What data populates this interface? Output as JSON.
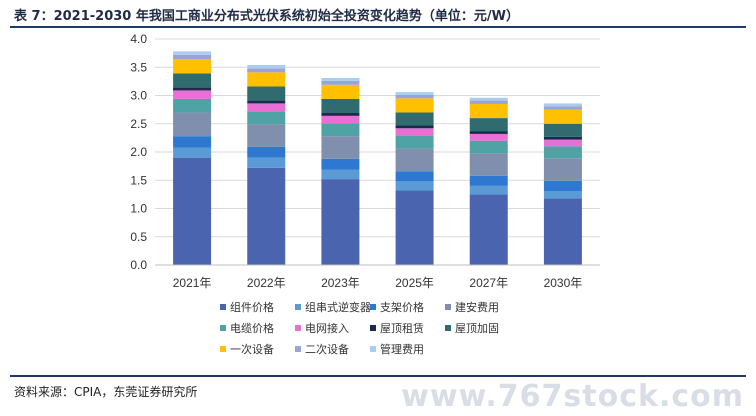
{
  "header": {
    "title": "表 7：2021-2030 年我国工商业分布式光伏系统初始全投资变化趋势（单位：元/W）"
  },
  "footer": {
    "source": "资料来源：CPIA，东莞证券研究所"
  },
  "watermark": "www.767stock.com",
  "chart_data": {
    "type": "bar",
    "stacked": true,
    "title": "",
    "xlabel": "",
    "ylabel": "",
    "ylim": [
      0,
      4.0
    ],
    "yticks": [
      "0.0",
      "0.5",
      "1.0",
      "1.5",
      "2.0",
      "2.5",
      "3.0",
      "3.5",
      "4.0"
    ],
    "grid": true,
    "legend_position": "bottom",
    "categories": [
      "2021年",
      "2022年",
      "2023年",
      "2025年",
      "2027年",
      "2030年"
    ],
    "series": [
      {
        "name": "组件价格",
        "color": "#4a64b0",
        "values": [
          1.9,
          1.72,
          1.52,
          1.32,
          1.25,
          1.18
        ]
      },
      {
        "name": "组串式逆变器",
        "color": "#5b9bd5",
        "values": [
          0.18,
          0.18,
          0.17,
          0.16,
          0.15,
          0.13
        ]
      },
      {
        "name": "支架价格",
        "color": "#2e78d2",
        "values": [
          0.2,
          0.19,
          0.19,
          0.18,
          0.18,
          0.18
        ]
      },
      {
        "name": "建安费用",
        "color": "#7f8fad",
        "values": [
          0.42,
          0.4,
          0.4,
          0.4,
          0.4,
          0.4
        ]
      },
      {
        "name": "电缆价格",
        "color": "#4fa3a5",
        "values": [
          0.24,
          0.23,
          0.23,
          0.23,
          0.22,
          0.21
        ]
      },
      {
        "name": "电网接入",
        "color": "#e96fd6",
        "values": [
          0.15,
          0.14,
          0.13,
          0.13,
          0.12,
          0.12
        ]
      },
      {
        "name": "屋顶租赁",
        "color": "#1a2a4a",
        "values": [
          0.05,
          0.05,
          0.05,
          0.05,
          0.05,
          0.05
        ]
      },
      {
        "name": "屋顶加固",
        "color": "#2f6b6f",
        "values": [
          0.25,
          0.25,
          0.25,
          0.23,
          0.23,
          0.23
        ]
      },
      {
        "name": "一次设备",
        "color": "#ffc000",
        "values": [
          0.25,
          0.25,
          0.25,
          0.25,
          0.25,
          0.25
        ]
      },
      {
        "name": "二次设备",
        "color": "#9aa4d8",
        "values": [
          0.08,
          0.07,
          0.07,
          0.06,
          0.06,
          0.06
        ]
      },
      {
        "name": "管理费用",
        "color": "#a9cdf0",
        "values": [
          0.06,
          0.06,
          0.05,
          0.05,
          0.05,
          0.05
        ]
      }
    ]
  }
}
